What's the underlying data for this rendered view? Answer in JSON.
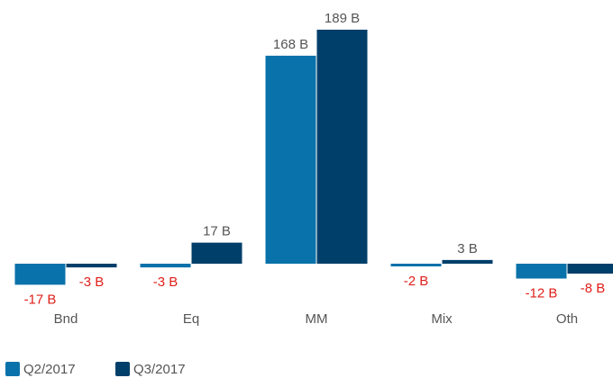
{
  "chart_data": {
    "type": "bar",
    "categories": [
      "Bnd",
      "Eq",
      "MM",
      "Mix",
      "Oth"
    ],
    "series": [
      {
        "name": "Q2/2017",
        "color": "#0a72aa",
        "values": [
          -17,
          -3,
          168,
          -2,
          -12
        ],
        "value_labels": [
          "-17 B",
          "-3 B",
          "168 B",
          "-2 B",
          "-12 B"
        ]
      },
      {
        "name": "Q3/2017",
        "color": "#003f6a",
        "values": [
          -3,
          17,
          189,
          3,
          -8
        ],
        "value_labels": [
          "-3 B",
          "17 B",
          "189 B",
          "3 B",
          "-8 B"
        ]
      }
    ],
    "negative_label_color": "#e0201b",
    "positive_label_color": "#555555"
  }
}
